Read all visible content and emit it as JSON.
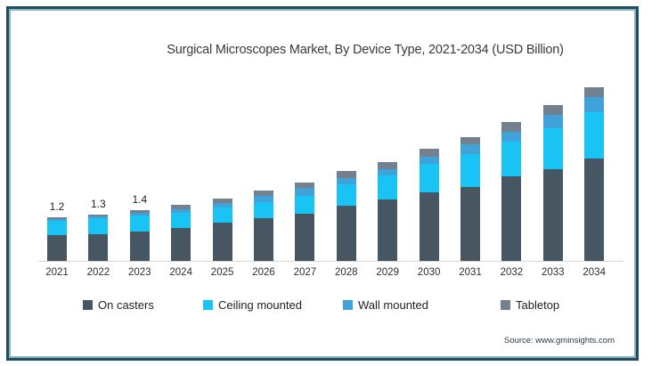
{
  "source": "Source: www.gminsights.com",
  "colors": {
    "frame_outer": "#1d4f63",
    "frame_inner": "#8ab1bd",
    "axis_line": "#d8d8d8"
  },
  "chart_data": {
    "type": "bar",
    "stacked": true,
    "title": "Surgical Microscopes Market, By Device Type, 2021-2034 (USD Billion)",
    "xlabel": "",
    "ylabel": "USD Billion",
    "ylim": [
      0,
      5
    ],
    "grid": false,
    "legend_position": "bottom",
    "categories": [
      "2021",
      "2022",
      "2023",
      "2024",
      "2025",
      "2026",
      "2027",
      "2028",
      "2029",
      "2030",
      "2031",
      "2032",
      "2033",
      "2034"
    ],
    "series": [
      {
        "name": "On casters",
        "color": "#475663",
        "values": [
          0.7,
          0.73,
          0.8,
          0.91,
          1.04,
          1.17,
          1.3,
          1.5,
          1.68,
          1.89,
          2.02,
          2.32,
          2.52,
          2.8
        ]
      },
      {
        "name": "Ceiling mounted",
        "color": "#19c3f3",
        "values": [
          0.4,
          0.45,
          0.45,
          0.42,
          0.42,
          0.45,
          0.49,
          0.58,
          0.67,
          0.78,
          0.9,
          0.96,
          1.13,
          1.26
        ]
      },
      {
        "name": "Wall mounted",
        "color": "#3fa3da",
        "values": [
          0.05,
          0.06,
          0.07,
          0.1,
          0.13,
          0.18,
          0.21,
          0.16,
          0.18,
          0.19,
          0.26,
          0.27,
          0.36,
          0.42
        ]
      },
      {
        "name": "Tabletop",
        "color": "#73808d",
        "values": [
          0.05,
          0.06,
          0.08,
          0.11,
          0.12,
          0.14,
          0.14,
          0.2,
          0.2,
          0.21,
          0.2,
          0.27,
          0.26,
          0.28
        ]
      }
    ],
    "totals": [
      1.2,
      1.3,
      1.4,
      1.54,
      1.71,
      1.94,
      2.14,
      2.44,
      2.73,
      3.07,
      3.38,
      3.82,
      4.27,
      4.76
    ],
    "data_labels": {
      "2021": "1.2",
      "2022": "1.3",
      "2023": "1.4"
    }
  }
}
